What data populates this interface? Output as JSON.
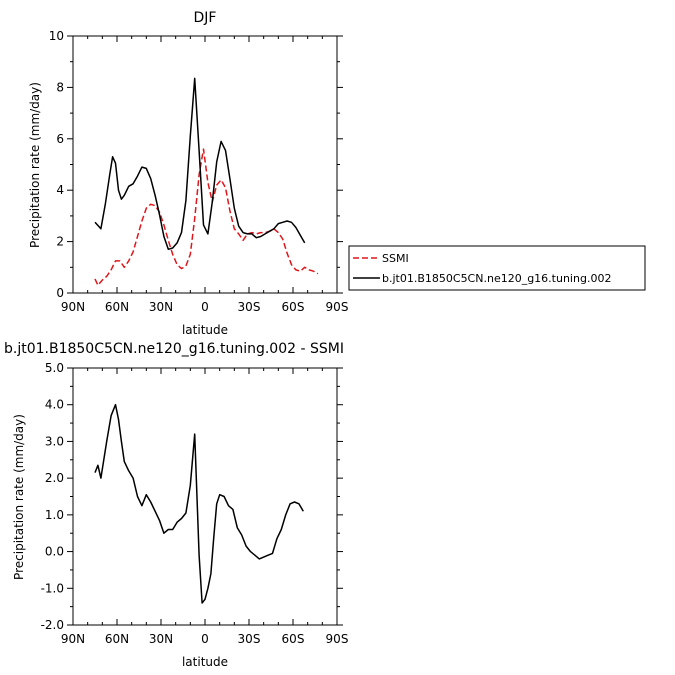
{
  "chart_data": [
    {
      "type": "line",
      "title": "DJF",
      "xlabel": "latitude",
      "ylabel": "Precipitation rate  (mm/day)",
      "xlim": [
        -90,
        90
      ],
      "ylim": [
        0,
        10
      ],
      "x_ticks": [
        -90,
        -60,
        -30,
        0,
        30,
        60,
        90
      ],
      "x_tick_labels": [
        "90N",
        "60N",
        "30N",
        "0",
        "30S",
        "60S",
        "90S"
      ],
      "y_ticks": [
        0,
        2,
        4,
        6,
        8,
        10
      ],
      "y_tick_labels": [
        "0",
        "2",
        "4",
        "6",
        "8",
        "10"
      ],
      "legend": "right",
      "series": [
        {
          "name": "SSMI",
          "color": "#e0161b",
          "dash": "dashed",
          "x": [
            -75,
            -73,
            -70,
            -67,
            -64,
            -61,
            -58,
            -55,
            -52,
            -49,
            -46,
            -43,
            -40,
            -37,
            -34,
            -31,
            -28,
            -25,
            -22,
            -19,
            -16,
            -13,
            -10,
            -7,
            -4,
            -1,
            2,
            5,
            8,
            11,
            14,
            17,
            20,
            23,
            26,
            29,
            32,
            35,
            38,
            41,
            44,
            47,
            50,
            53,
            56,
            59,
            62,
            65,
            68,
            71,
            74,
            77
          ],
          "y": [
            0.55,
            0.3,
            0.5,
            0.65,
            0.9,
            1.25,
            1.25,
            1.0,
            1.25,
            1.6,
            2.2,
            2.8,
            3.3,
            3.45,
            3.4,
            3.15,
            2.65,
            2.05,
            1.5,
            1.1,
            0.95,
            1.05,
            1.5,
            2.9,
            4.6,
            5.6,
            4.3,
            3.55,
            4.2,
            4.4,
            4.1,
            3.2,
            2.5,
            2.3,
            2.05,
            2.3,
            2.35,
            2.3,
            2.35,
            2.35,
            2.4,
            2.5,
            2.35,
            2.1,
            1.55,
            1.1,
            0.9,
            0.85,
            1.0,
            0.9,
            0.85,
            0.75
          ]
        },
        {
          "name": "b.jt01.B1850C5CN.ne120_g16.tuning.002",
          "color": "#000000",
          "dash": "solid",
          "x": [
            -75,
            -71,
            -68,
            -65,
            -63,
            -61,
            -59,
            -57,
            -55,
            -52,
            -49,
            -46,
            -43,
            -40,
            -37,
            -34,
            -31,
            -28,
            -25,
            -22,
            -19,
            -16,
            -13,
            -10,
            -7,
            -4,
            -1,
            2,
            5,
            8,
            11,
            14,
            17,
            20,
            23,
            26,
            29,
            32,
            35,
            38,
            41,
            44,
            47,
            50,
            53,
            56,
            59,
            62,
            65,
            68
          ],
          "y": [
            2.75,
            2.5,
            3.45,
            4.6,
            5.3,
            5.05,
            4.0,
            3.65,
            3.8,
            4.15,
            4.25,
            4.55,
            4.9,
            4.85,
            4.45,
            3.8,
            3.05,
            2.2,
            1.7,
            1.75,
            1.95,
            2.35,
            3.6,
            6.1,
            8.35,
            5.55,
            2.65,
            2.3,
            3.55,
            5.1,
            5.9,
            5.55,
            4.45,
            3.3,
            2.6,
            2.35,
            2.3,
            2.3,
            2.15,
            2.2,
            2.3,
            2.4,
            2.5,
            2.7,
            2.75,
            2.8,
            2.75,
            2.55,
            2.25,
            1.95
          ]
        }
      ]
    },
    {
      "type": "line",
      "title": "b.jt01.B1850C5CN.ne120_g16.tuning.002 - SSMI",
      "xlabel": "latitude",
      "ylabel": "Precipitation rate  (mm/day)",
      "xlim": [
        -90,
        90
      ],
      "ylim": [
        -2,
        5
      ],
      "x_ticks": [
        -90,
        -60,
        -30,
        0,
        30,
        60,
        90
      ],
      "x_tick_labels": [
        "90N",
        "60N",
        "30N",
        "0",
        "30S",
        "60S",
        "90S"
      ],
      "y_ticks": [
        -2,
        -1,
        0,
        1,
        2,
        3,
        4,
        5
      ],
      "y_tick_labels": [
        "-2.0",
        "-1.0",
        "0.0",
        "1.0",
        "2.0",
        "3.0",
        "4.0",
        "5.0"
      ],
      "series": [
        {
          "name": "",
          "color": "#000000",
          "dash": "solid",
          "x": [
            -75,
            -73,
            -71,
            -69,
            -67,
            -64,
            -61,
            -59,
            -57,
            -55,
            -52,
            -49,
            -46,
            -43,
            -40,
            -37,
            -34,
            -31,
            -28,
            -25,
            -22,
            -19,
            -16,
            -13,
            -10,
            -7,
            -4,
            -2,
            0,
            2,
            4,
            6,
            8,
            10,
            13,
            16,
            19,
            22,
            25,
            28,
            31,
            34,
            37,
            40,
            43,
            46,
            49,
            52,
            55,
            58,
            61,
            64,
            67
          ],
          "y": [
            2.15,
            2.35,
            2.0,
            2.5,
            3.0,
            3.7,
            4.0,
            3.6,
            3.0,
            2.45,
            2.2,
            2.0,
            1.5,
            1.25,
            1.55,
            1.35,
            1.1,
            0.85,
            0.5,
            0.6,
            0.6,
            0.8,
            0.9,
            1.05,
            1.8,
            3.2,
            -0.1,
            -1.4,
            -1.3,
            -1.0,
            -0.6,
            0.4,
            1.3,
            1.55,
            1.5,
            1.25,
            1.15,
            0.65,
            0.45,
            0.15,
            0.0,
            -0.1,
            -0.2,
            -0.15,
            -0.1,
            -0.05,
            0.35,
            0.6,
            1.0,
            1.3,
            1.35,
            1.3,
            1.1
          ]
        }
      ]
    }
  ]
}
